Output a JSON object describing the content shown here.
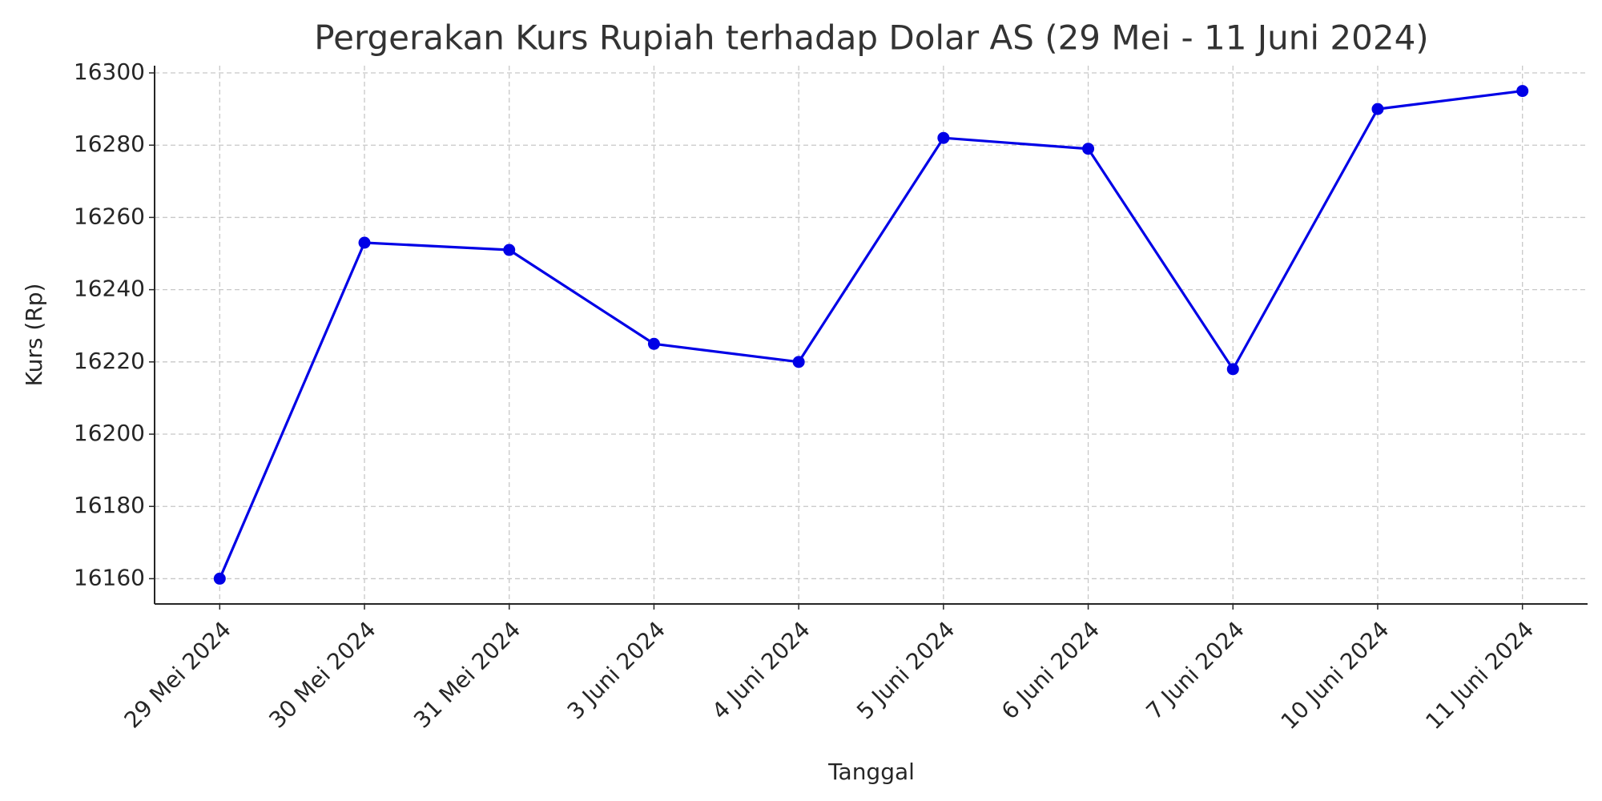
{
  "chart_data": {
    "type": "line",
    "title": "Pergerakan Kurs Rupiah terhadap Dolar AS (29 Mei - 11 Juni 2024)",
    "x_label": "Tanggal",
    "y_label": "Kurs (Rp)",
    "categories": [
      "29 Mei 2024",
      "30 Mei 2024",
      "31 Mei 2024",
      "3 Juni 2024",
      "4 Juni 2024",
      "5 Juni 2024",
      "6 Juni 2024",
      "7 Juni 2024",
      "10 Juni 2024",
      "11 Juni 2024"
    ],
    "values": [
      16160,
      16253,
      16251,
      16225,
      16220,
      16282,
      16279,
      16218,
      16290,
      16295
    ],
    "color": "#0000e6",
    "ylim": [
      16153,
      16302
    ],
    "yticks": [
      16160,
      16180,
      16200,
      16220,
      16240,
      16260,
      16280,
      16300
    ],
    "grid": true
  }
}
